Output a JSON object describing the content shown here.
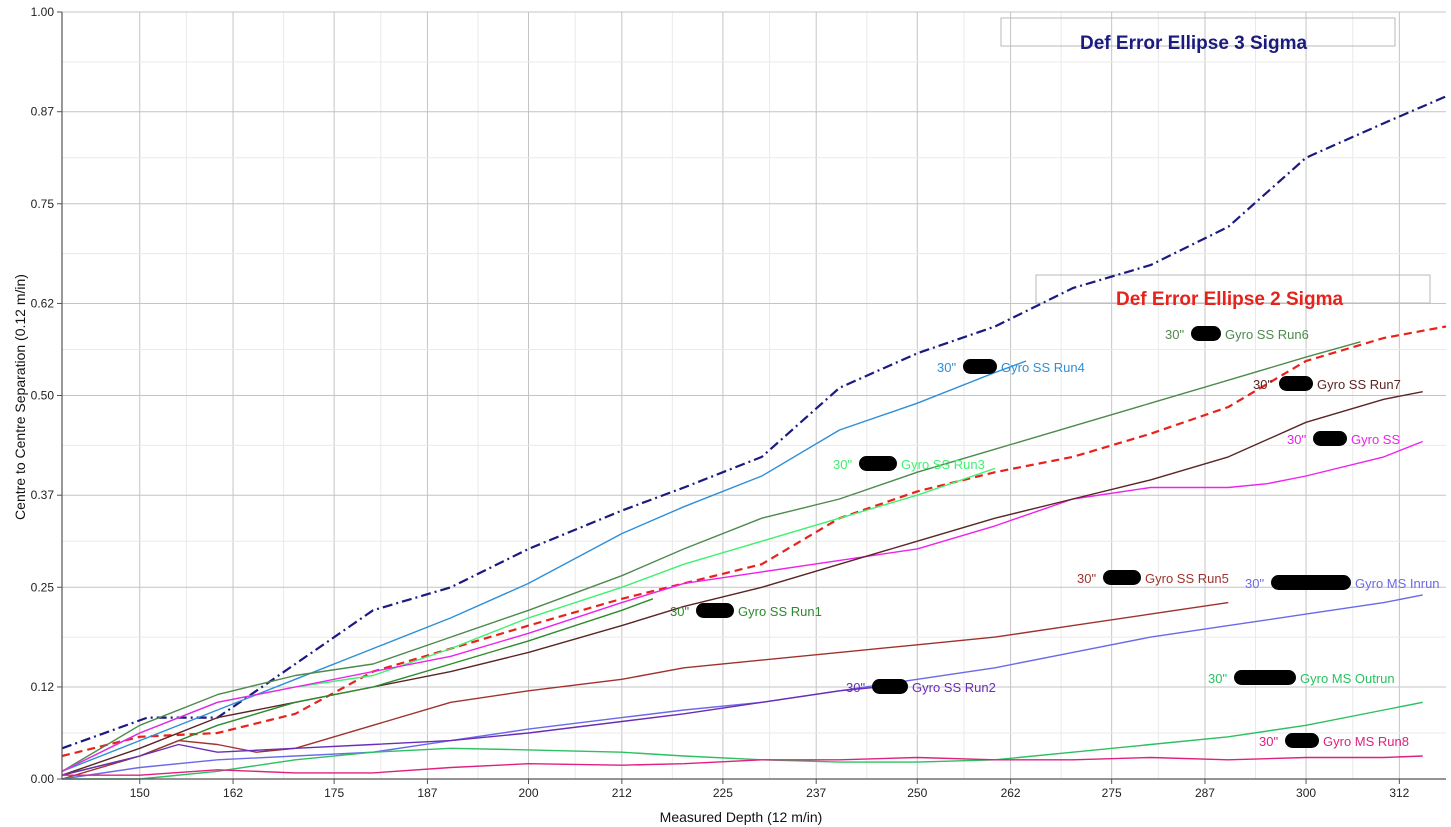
{
  "chart_data": {
    "type": "line",
    "xlabel": "Measured Depth (12 m/in)",
    "ylabel": "Centre to Centre Separation (0.12 m/in)",
    "xlim": [
      140,
      318
    ],
    "ylim": [
      0,
      1.0
    ],
    "x_ticks": [
      150,
      162,
      175,
      187,
      200,
      212,
      225,
      237,
      250,
      262,
      275,
      287,
      300,
      312
    ],
    "y_ticks": [
      0.0,
      0.12,
      0.25,
      0.37,
      0.5,
      0.62,
      0.75,
      0.87,
      1.0
    ],
    "x_tick_labels": [
      "150",
      "162",
      "175",
      "187",
      "200",
      "212",
      "225",
      "237",
      "250",
      "262",
      "275",
      "287",
      "300",
      "312"
    ],
    "y_tick_labels": [
      "0.00",
      "0.12",
      "0.25",
      "0.37",
      "0.50",
      "0.62",
      "0.75",
      "0.87",
      "1.00"
    ],
    "grid": true,
    "annotations": [
      {
        "text": "Def Error Ellipse 3 Sigma",
        "color": "#1a1a80"
      },
      {
        "text": "Def Error Ellipse 2 Sigma",
        "color": "#e8221b"
      }
    ],
    "series": [
      {
        "name": "Def Error Ellipse 3 Sigma",
        "color": "#1a1a80",
        "style": "dashdot",
        "x": [
          140,
          151,
          160,
          170,
          180,
          190,
          200,
          212,
          220,
          230,
          240,
          250,
          260,
          270,
          280,
          290,
          300,
          310,
          318
        ],
        "y": [
          0.04,
          0.08,
          0.08,
          0.15,
          0.22,
          0.25,
          0.3,
          0.35,
          0.38,
          0.42,
          0.51,
          0.555,
          0.59,
          0.64,
          0.67,
          0.72,
          0.81,
          0.855,
          0.89
        ]
      },
      {
        "name": "Def Error Ellipse 2 Sigma",
        "color": "#e8221b",
        "style": "dashed",
        "x": [
          140,
          150,
          160,
          170,
          180,
          190,
          200,
          212,
          220,
          230,
          240,
          250,
          260,
          270,
          280,
          290,
          300,
          310,
          318
        ],
        "y": [
          0.03,
          0.055,
          0.06,
          0.085,
          0.14,
          0.17,
          0.2,
          0.235,
          0.255,
          0.28,
          0.34,
          0.375,
          0.4,
          0.42,
          0.45,
          0.485,
          0.545,
          0.575,
          0.59
        ]
      },
      {
        "name": "Gyro SS Run4",
        "color": "#2e8fd8",
        "style": "solid",
        "x": [
          140,
          150,
          160,
          170,
          180,
          190,
          200,
          212,
          220,
          230,
          240,
          250,
          260,
          264
        ],
        "y": [
          0.01,
          0.05,
          0.09,
          0.13,
          0.17,
          0.21,
          0.255,
          0.32,
          0.355,
          0.395,
          0.455,
          0.49,
          0.53,
          0.545
        ]
      },
      {
        "name": "Gyro SS Run6",
        "color": "#4e8a4e",
        "style": "solid",
        "x": [
          140,
          150,
          160,
          170,
          180,
          190,
          200,
          212,
          220,
          230,
          240,
          250,
          260,
          270,
          280,
          290,
          300,
          307
        ],
        "y": [
          0.01,
          0.07,
          0.11,
          0.135,
          0.15,
          0.185,
          0.22,
          0.265,
          0.3,
          0.34,
          0.365,
          0.4,
          0.43,
          0.46,
          0.49,
          0.52,
          0.55,
          0.57
        ]
      },
      {
        "name": "Gyro SS Run3",
        "color": "#40f070",
        "style": "solid",
        "x": [
          140,
          150,
          160,
          170,
          180,
          190,
          200,
          212,
          220,
          230,
          240,
          250,
          260
        ],
        "y": [
          0.01,
          0.06,
          0.1,
          0.12,
          0.135,
          0.17,
          0.21,
          0.25,
          0.28,
          0.31,
          0.34,
          0.37,
          0.405
        ]
      },
      {
        "name": "Gyro SS",
        "color": "#ee22ee",
        "style": "solid",
        "x": [
          140,
          150,
          160,
          170,
          180,
          190,
          200,
          212,
          220,
          230,
          240,
          250,
          260,
          270,
          280,
          290,
          295,
          300,
          310,
          315
        ],
        "y": [
          0.01,
          0.06,
          0.1,
          0.12,
          0.14,
          0.16,
          0.19,
          0.23,
          0.255,
          0.27,
          0.285,
          0.3,
          0.33,
          0.365,
          0.38,
          0.38,
          0.385,
          0.395,
          0.42,
          0.44
        ]
      },
      {
        "name": "Gyro SS Run7",
        "color": "#5a2525",
        "style": "solid",
        "x": [
          140,
          150,
          160,
          170,
          180,
          190,
          200,
          212,
          220,
          230,
          240,
          250,
          260,
          270,
          280,
          290,
          300,
          310,
          315
        ],
        "y": [
          0.005,
          0.04,
          0.08,
          0.1,
          0.12,
          0.14,
          0.165,
          0.2,
          0.225,
          0.25,
          0.28,
          0.31,
          0.34,
          0.365,
          0.39,
          0.42,
          0.465,
          0.495,
          0.505
        ]
      },
      {
        "name": "Gyro SS Run1",
        "color": "#2d8a2d",
        "style": "solid",
        "x": [
          140,
          150,
          160,
          170,
          180,
          190,
          200,
          212,
          216
        ],
        "y": [
          0.005,
          0.03,
          0.07,
          0.1,
          0.12,
          0.15,
          0.18,
          0.22,
          0.235
        ]
      },
      {
        "name": "Gyro SS Run5",
        "color": "#a0322d",
        "style": "solid",
        "x": [
          140,
          150,
          155,
          160,
          165,
          170,
          180,
          190,
          200,
          212,
          220,
          230,
          240,
          250,
          260,
          270,
          280,
          290
        ],
        "y": [
          0.0,
          0.03,
          0.05,
          0.045,
          0.035,
          0.04,
          0.07,
          0.1,
          0.115,
          0.13,
          0.145,
          0.155,
          0.165,
          0.175,
          0.185,
          0.2,
          0.215,
          0.23
        ]
      },
      {
        "name": "Gyro MS Inrun",
        "color": "#6a6ae8",
        "style": "solid",
        "x": [
          140,
          150,
          160,
          170,
          180,
          190,
          200,
          212,
          220,
          230,
          240,
          250,
          260,
          270,
          280,
          290,
          300,
          310,
          315
        ],
        "y": [
          0.0,
          0.015,
          0.025,
          0.03,
          0.035,
          0.05,
          0.065,
          0.08,
          0.09,
          0.1,
          0.115,
          0.13,
          0.145,
          0.165,
          0.185,
          0.2,
          0.215,
          0.23,
          0.24
        ]
      },
      {
        "name": "Gyro SS Run2",
        "color": "#6a2db8",
        "style": "solid",
        "x": [
          140,
          150,
          155,
          160,
          170,
          180,
          190,
          200,
          212,
          220,
          230,
          240,
          245
        ],
        "y": [
          0.005,
          0.03,
          0.045,
          0.035,
          0.04,
          0.045,
          0.05,
          0.06,
          0.075,
          0.085,
          0.1,
          0.115,
          0.12
        ]
      },
      {
        "name": "Gyro MS Outrun",
        "color": "#2cc060",
        "style": "solid",
        "x": [
          140,
          150,
          160,
          170,
          180,
          190,
          200,
          212,
          220,
          230,
          240,
          250,
          260,
          270,
          280,
          290,
          300,
          310,
          315
        ],
        "y": [
          0.0,
          0.0,
          0.01,
          0.025,
          0.035,
          0.04,
          0.038,
          0.035,
          0.03,
          0.025,
          0.022,
          0.022,
          0.025,
          0.035,
          0.045,
          0.055,
          0.07,
          0.09,
          0.1
        ]
      },
      {
        "name": "Gyro MS Run8",
        "color": "#e02080",
        "style": "solid",
        "x": [
          140,
          150,
          160,
          170,
          180,
          190,
          200,
          212,
          220,
          230,
          240,
          250,
          260,
          270,
          280,
          290,
          300,
          310,
          315
        ],
        "y": [
          0.005,
          0.005,
          0.012,
          0.008,
          0.008,
          0.015,
          0.02,
          0.018,
          0.02,
          0.025,
          0.025,
          0.028,
          0.025,
          0.025,
          0.028,
          0.025,
          0.028,
          0.028,
          0.03
        ]
      }
    ],
    "series_labels": [
      {
        "prefix": "30\"",
        "text": "Gyro SS Run4",
        "color": "#2e8fd8"
      },
      {
        "prefix": "30\"",
        "text": "Gyro SS Run6",
        "color": "#4e8a4e"
      },
      {
        "prefix": "30\"",
        "text": "Gyro SS Run7",
        "color": "#5a2525"
      },
      {
        "prefix": "30\"",
        "text": "Gyro SS",
        "color": "#ee22ee"
      },
      {
        "prefix": "30\"",
        "text": "Gyro SS Run3",
        "color": "#40f070"
      },
      {
        "prefix": "30\"",
        "text": "Gyro SS Run5",
        "color": "#a0322d"
      },
      {
        "prefix": "30\"",
        "text": "Gyro MS Inrun",
        "color": "#6a6ae8"
      },
      {
        "prefix": "30\"",
        "text": "Gyro SS Run1",
        "color": "#2d8a2d"
      },
      {
        "prefix": "30\"",
        "text": "Gyro SS Run2",
        "color": "#6a2db8"
      },
      {
        "prefix": "30\"",
        "text": "Gyro MS Outrun",
        "color": "#2cc060"
      },
      {
        "prefix": "30\"",
        "text": "Gyro MS Run8",
        "color": "#e02080"
      }
    ]
  }
}
